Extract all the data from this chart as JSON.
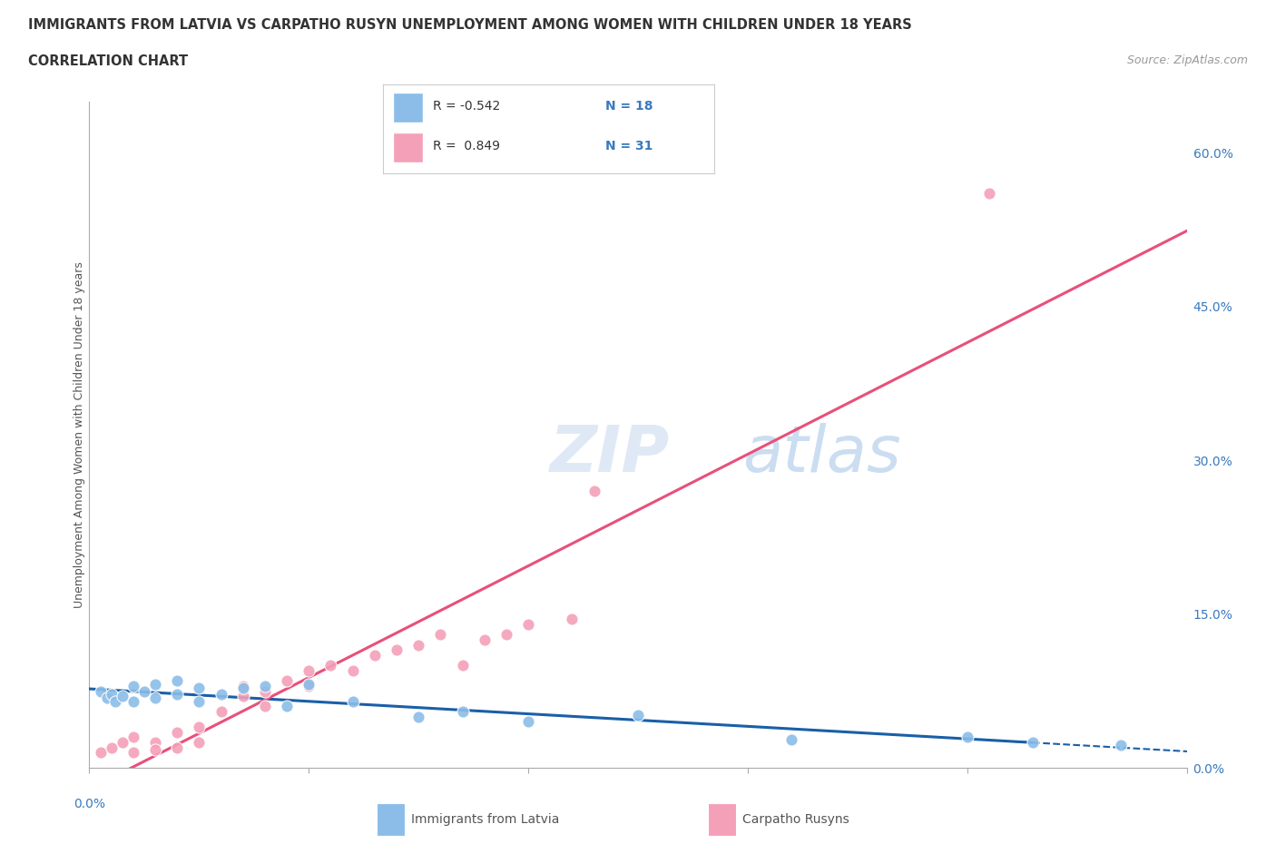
{
  "title": "IMMIGRANTS FROM LATVIA VS CARPATHO RUSYN UNEMPLOYMENT AMONG WOMEN WITH CHILDREN UNDER 18 YEARS",
  "subtitle": "CORRELATION CHART",
  "source": "Source: ZipAtlas.com",
  "ylabel": "Unemployment Among Women with Children Under 18 years",
  "legend_label_1": "Immigrants from Latvia",
  "legend_label_2": "Carpatho Rusyns",
  "color_latvia": "#8bbde8",
  "color_rusyn": "#f4a0b8",
  "color_line_latvia": "#1a5fa8",
  "color_line_rusyn": "#e8507a",
  "color_axis_labels": "#3a7abf",
  "color_title": "#333333",
  "background": "#ffffff",
  "yticks": [
    0.0,
    0.15,
    0.3,
    0.45,
    0.6
  ],
  "ytick_labels": [
    "0.0%",
    "15.0%",
    "30.0%",
    "45.0%",
    "60.0%"
  ],
  "xlim": [
    0.0,
    0.05
  ],
  "ylim": [
    0.0,
    0.65
  ],
  "latvia_x": [
    0.0005,
    0.0008,
    0.001,
    0.0012,
    0.0015,
    0.002,
    0.002,
    0.0025,
    0.003,
    0.003,
    0.004,
    0.004,
    0.005,
    0.005,
    0.006,
    0.007,
    0.008,
    0.009,
    0.01,
    0.012,
    0.015,
    0.017,
    0.02,
    0.025,
    0.032,
    0.04,
    0.043,
    0.047
  ],
  "latvia_y": [
    0.075,
    0.068,
    0.072,
    0.065,
    0.07,
    0.08,
    0.065,
    0.075,
    0.082,
    0.068,
    0.085,
    0.072,
    0.078,
    0.065,
    0.072,
    0.078,
    0.08,
    0.06,
    0.082,
    0.065,
    0.05,
    0.055,
    0.045,
    0.052,
    0.028,
    0.03,
    0.025,
    0.022
  ],
  "rusyn_x": [
    0.0005,
    0.001,
    0.0015,
    0.002,
    0.002,
    0.003,
    0.003,
    0.004,
    0.004,
    0.005,
    0.005,
    0.006,
    0.007,
    0.007,
    0.008,
    0.008,
    0.009,
    0.01,
    0.01,
    0.011,
    0.012,
    0.013,
    0.014,
    0.015,
    0.016,
    0.017,
    0.018,
    0.019,
    0.02,
    0.022,
    0.023
  ],
  "rusyn_y": [
    0.015,
    0.02,
    0.025,
    0.03,
    0.015,
    0.025,
    0.018,
    0.035,
    0.02,
    0.04,
    0.025,
    0.055,
    0.07,
    0.08,
    0.06,
    0.075,
    0.085,
    0.08,
    0.095,
    0.1,
    0.095,
    0.11,
    0.115,
    0.12,
    0.13,
    0.1,
    0.125,
    0.13,
    0.14,
    0.145,
    0.27
  ]
}
